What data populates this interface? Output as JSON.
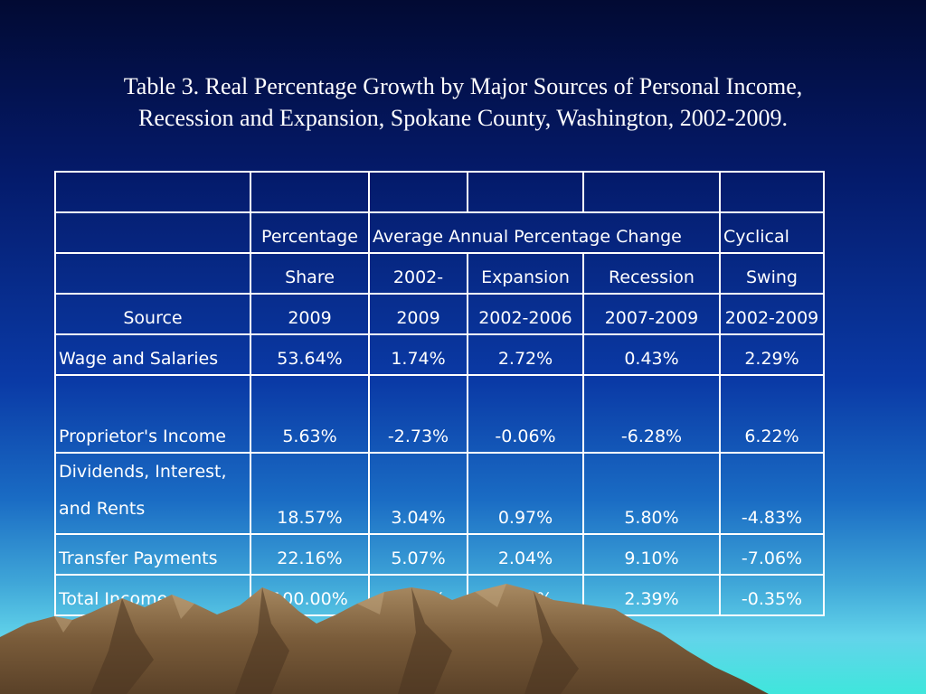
{
  "slide": {
    "title_line1": "Table 3. Real Percentage Growth by Major Sources of Personal Income,",
    "title_line2": "Recession and Expansion, Spokane County, Washington, 2002-2009."
  },
  "table": {
    "header_row2": {
      "percentage": "Percentage",
      "average": "Average Annual Percentage Change",
      "cyclical": "Cyclical"
    },
    "header_row3": {
      "share": "Share",
      "period": "2002-",
      "expansion": "Expansion",
      "recession": "Recession",
      "swing": "Swing"
    },
    "header_row4": {
      "source": "Source",
      "share_year": "2009",
      "period_end": "2009",
      "expansion_years": "2002-2006",
      "recession_years": "2007-2009",
      "swing_years": "2002-2009"
    },
    "rows": [
      {
        "source": "Wage and Salaries",
        "share": "53.64%",
        "avg": "1.74%",
        "expansion": "2.72%",
        "recession": "0.43%",
        "swing": "2.29%"
      },
      {
        "source": "Proprietor's Income",
        "share": "5.63%",
        "avg": "-2.73%",
        "expansion": "-0.06%",
        "recession": "-6.28%",
        "swing": "6.22%"
      },
      {
        "source_line1": "Dividends, Interest,",
        "source_line2": "and Rents",
        "share": "18.57%",
        "avg": "3.04%",
        "expansion": "0.97%",
        "recession": "5.80%",
        "swing": "-4.83%"
      },
      {
        "source": "Transfer Payments",
        "share": "22.16%",
        "avg": "5.07%",
        "expansion": "2.04%",
        "recession": "9.10%",
        "swing": "-7.06%"
      },
      {
        "source": "Total Income",
        "share": "100.00%",
        "avg": "2.19%",
        "expansion": "2.04%",
        "recession": "2.39%",
        "swing": "-0.35%"
      }
    ]
  },
  "colors": {
    "background_top": "#020a33",
    "background_bottom": "#3fe6dc",
    "text": "#ffffff",
    "mountains": "#8a6a45"
  }
}
